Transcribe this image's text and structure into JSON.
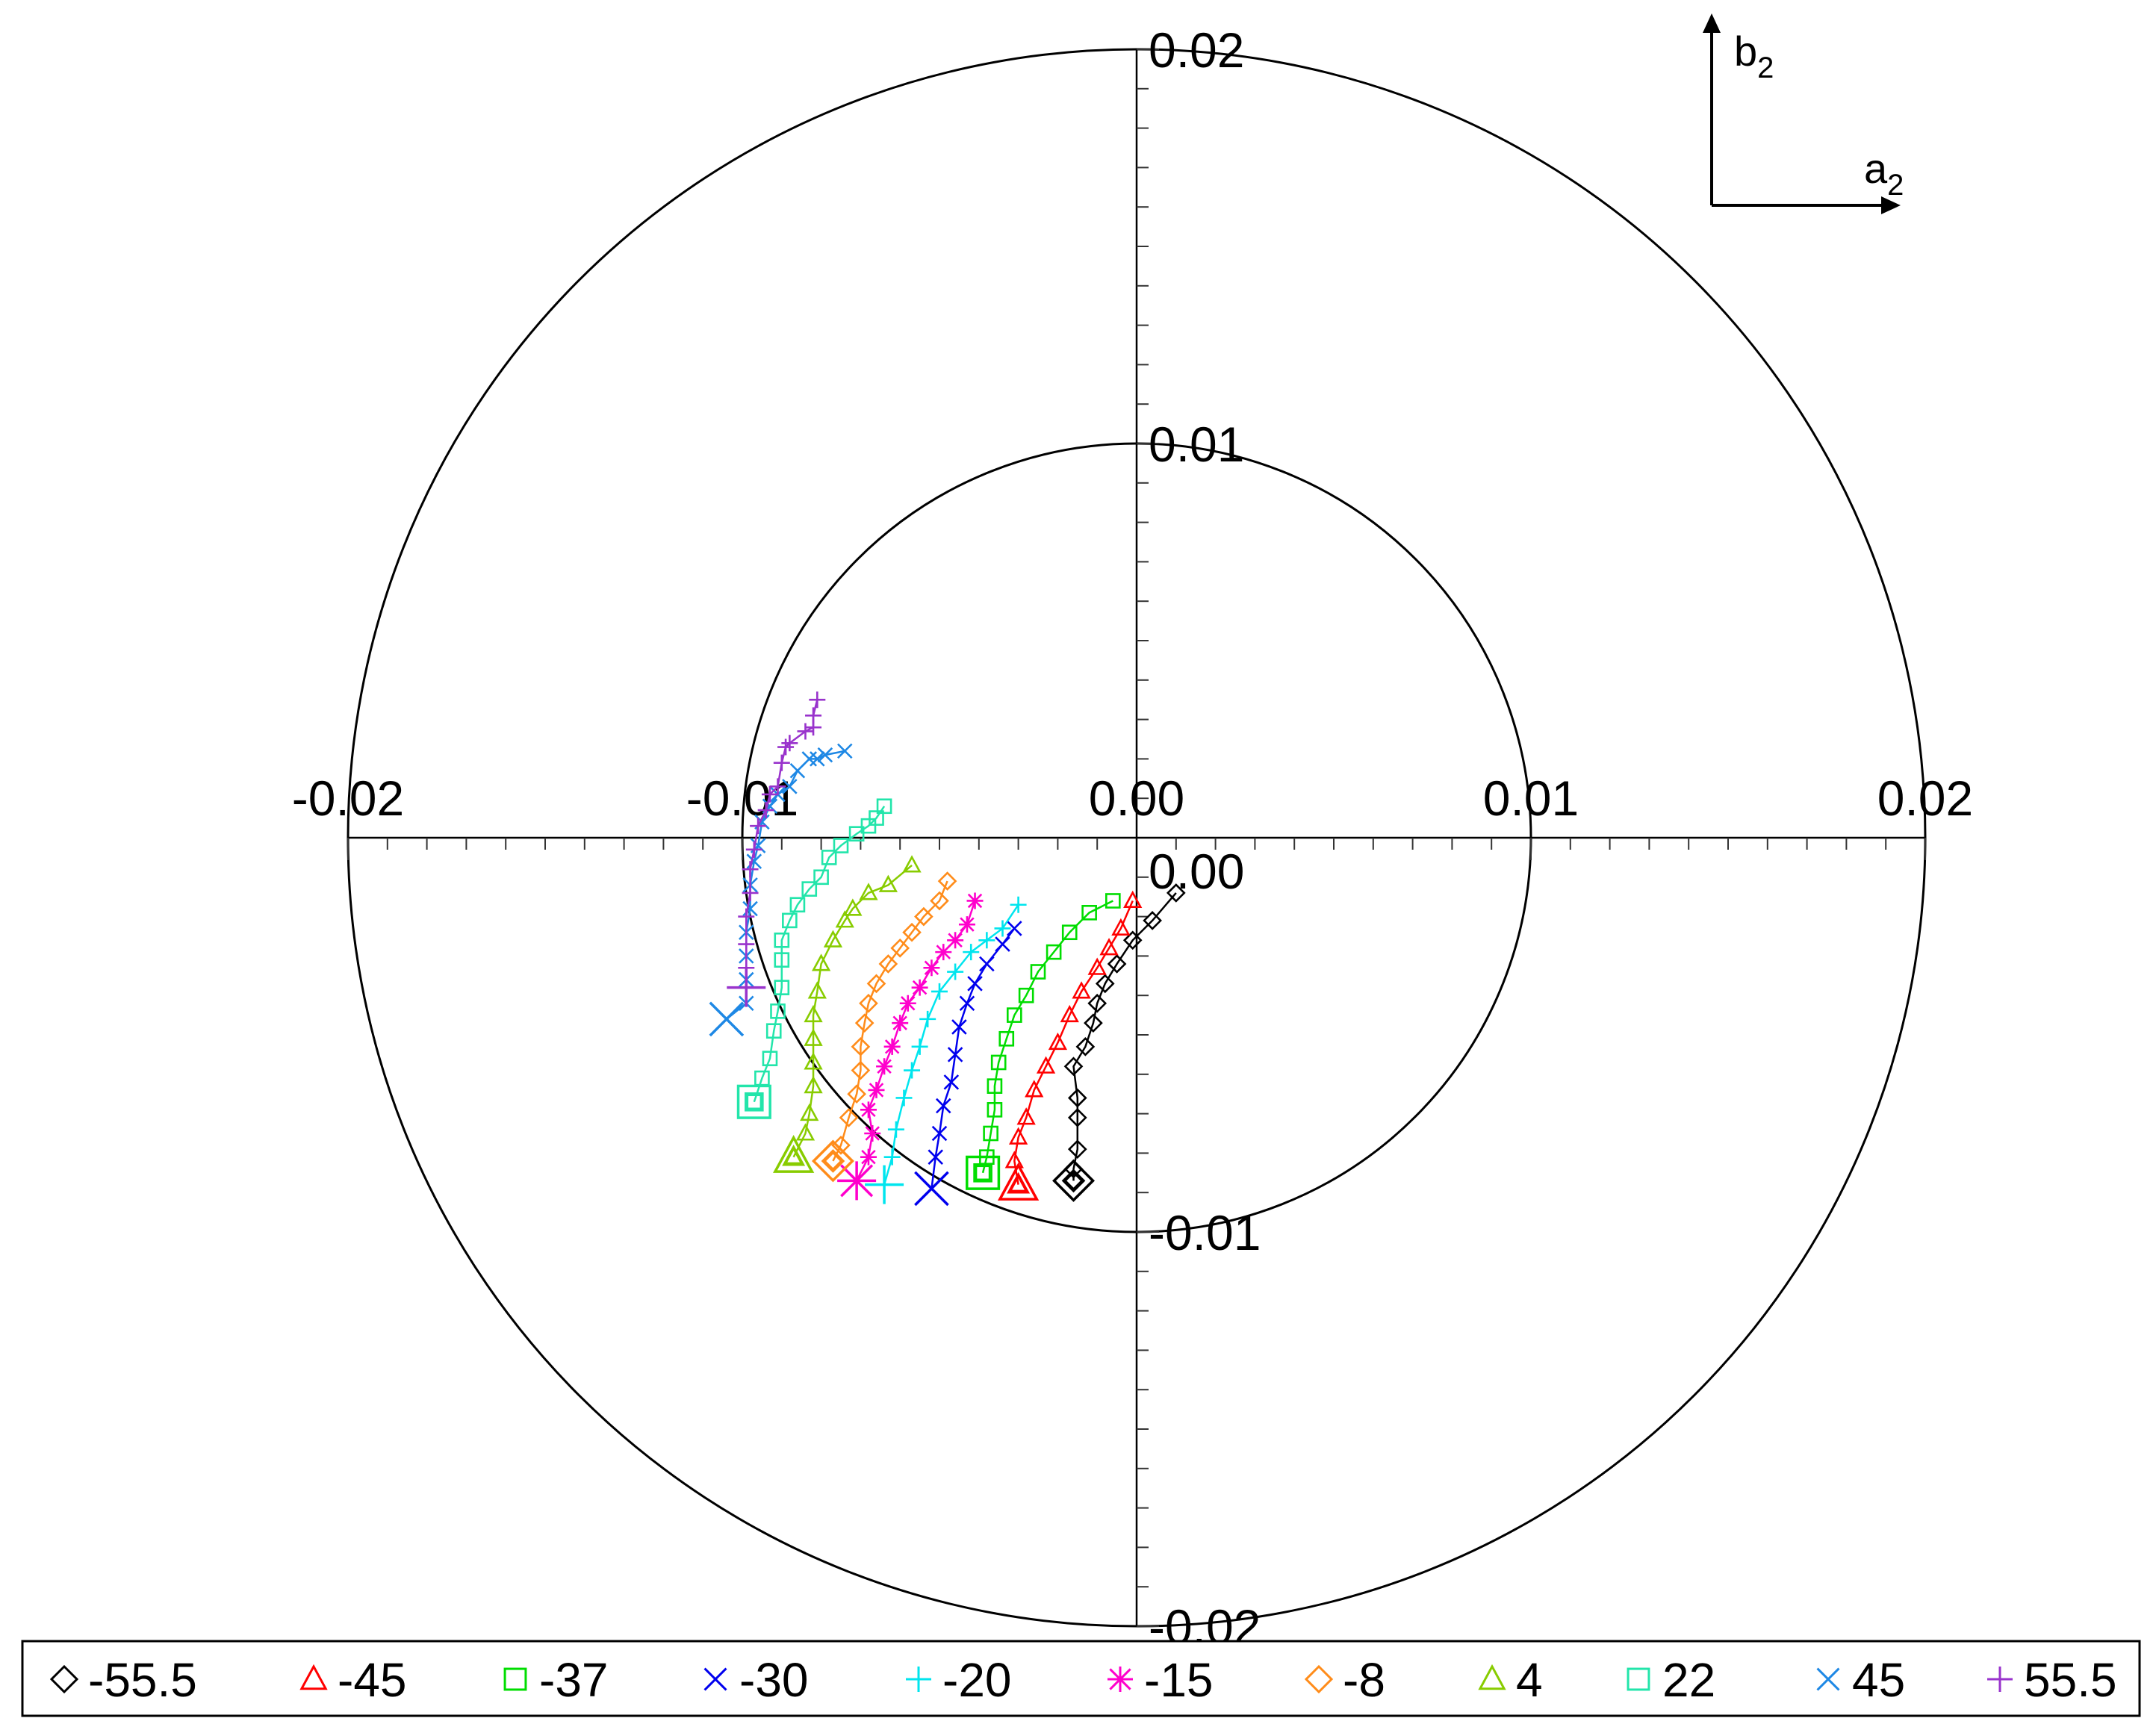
{
  "chart_data": {
    "type": "scatter",
    "title": "",
    "coordinate_system": "polar-style harmonic plane",
    "x_axis_name": "a",
    "x_axis_subscript": "2",
    "y_axis_name": "b",
    "y_axis_subscript": "2",
    "xlim": [
      -0.02,
      0.02
    ],
    "ylim": [
      -0.02,
      0.02
    ],
    "circles": [
      0.01,
      0.02
    ],
    "x_tick_labels": [
      "-0.02",
      "-0.01",
      "0.00",
      "0.01",
      "0.02"
    ],
    "x_tick_values": [
      -0.02,
      -0.01,
      0.0,
      0.01,
      0.02
    ],
    "y_tick_labels": [
      "0.02",
      "0.01",
      "0.00",
      "-0.01",
      "-0.02"
    ],
    "y_tick_values": [
      0.02,
      0.01,
      0.0,
      -0.01,
      -0.02
    ],
    "grid": false,
    "legend_position": "bottom",
    "series": [
      {
        "name": "-55.5",
        "color": "#000000",
        "marker": "diamond",
        "x": [
          -0.0016,
          -0.0016,
          -0.0015,
          -0.0015,
          -0.0015,
          -0.0016,
          -0.0013,
          -0.0011,
          -0.001,
          -0.0008,
          -0.0005,
          -0.0001,
          0.0004,
          0.001
        ],
        "y": [
          -0.0087,
          -0.0084,
          -0.0079,
          -0.0071,
          -0.0066,
          -0.0058,
          -0.0053,
          -0.0047,
          -0.0042,
          -0.0037,
          -0.0032,
          -0.0026,
          -0.0021,
          -0.0014
        ]
      },
      {
        "name": "-45",
        "color": "#ff0000",
        "marker": "triangle",
        "x": [
          -0.003,
          -0.0031,
          -0.003,
          -0.0028,
          -0.0026,
          -0.0023,
          -0.002,
          -0.0017,
          -0.0014,
          -0.001,
          -0.0007,
          -0.0004,
          -0.0001
        ],
        "y": [
          -0.0088,
          -0.0082,
          -0.0076,
          -0.0071,
          -0.0064,
          -0.0058,
          -0.0052,
          -0.0045,
          -0.0039,
          -0.0033,
          -0.0028,
          -0.0023,
          -0.0016
        ]
      },
      {
        "name": "-37",
        "color": "#00dd00",
        "marker": "square",
        "x": [
          -0.0039,
          -0.0038,
          -0.0037,
          -0.0036,
          -0.0036,
          -0.0035,
          -0.0033,
          -0.0031,
          -0.0028,
          -0.0025,
          -0.0021,
          -0.0017,
          -0.0012,
          -0.0006
        ],
        "y": [
          -0.0085,
          -0.0081,
          -0.0075,
          -0.0069,
          -0.0063,
          -0.0057,
          -0.0051,
          -0.0045,
          -0.004,
          -0.0034,
          -0.0029,
          -0.0024,
          -0.0019,
          -0.0016
        ]
      },
      {
        "name": "-30",
        "color": "#0000ee",
        "marker": "x",
        "x": [
          -0.0052,
          -0.0051,
          -0.005,
          -0.0049,
          -0.0047,
          -0.0046,
          -0.0045,
          -0.0043,
          -0.0041,
          -0.0038,
          -0.0034,
          -0.0031
        ],
        "y": [
          -0.0089,
          -0.0081,
          -0.0075,
          -0.0068,
          -0.0062,
          -0.0055,
          -0.0048,
          -0.0042,
          -0.0037,
          -0.0032,
          -0.0027,
          -0.0023
        ]
      },
      {
        "name": "-20",
        "color": "#00e5ee",
        "marker": "plus",
        "x": [
          -0.0064,
          -0.0062,
          -0.0061,
          -0.0059,
          -0.0057,
          -0.0055,
          -0.0053,
          -0.005,
          -0.0046,
          -0.0042,
          -0.0038,
          -0.0034,
          -0.003
        ],
        "y": [
          -0.0088,
          -0.0081,
          -0.0074,
          -0.0066,
          -0.0059,
          -0.0053,
          -0.0046,
          -0.0039,
          -0.0034,
          -0.0029,
          -0.0026,
          -0.0023,
          -0.0017
        ]
      },
      {
        "name": "-15",
        "color": "#ff00cc",
        "marker": "asterisk",
        "x": [
          -0.0071,
          -0.0068,
          -0.0067,
          -0.0068,
          -0.0066,
          -0.0064,
          -0.0062,
          -0.006,
          -0.0058,
          -0.0055,
          -0.0052,
          -0.0049,
          -0.0046,
          -0.0043,
          -0.0041
        ],
        "y": [
          -0.0087,
          -0.0081,
          -0.0075,
          -0.0069,
          -0.0064,
          -0.0058,
          -0.0053,
          -0.0047,
          -0.0042,
          -0.0038,
          -0.0033,
          -0.0029,
          -0.0026,
          -0.0022,
          -0.0016
        ]
      },
      {
        "name": "-8",
        "color": "#ff8c1a",
        "marker": "diamond",
        "x": [
          -0.0077,
          -0.0075,
          -0.0073,
          -0.0071,
          -0.007,
          -0.007,
          -0.0069,
          -0.0068,
          -0.0066,
          -0.0063,
          -0.006,
          -0.0057,
          -0.0054,
          -0.005,
          -0.0048
        ],
        "y": [
          -0.0082,
          -0.0078,
          -0.0071,
          -0.0065,
          -0.0059,
          -0.0053,
          -0.0047,
          -0.0042,
          -0.0037,
          -0.0032,
          -0.0028,
          -0.0024,
          -0.002,
          -0.0016,
          -0.0011
        ]
      },
      {
        "name": "4",
        "color": "#88cc00",
        "marker": "triangle",
        "x": [
          -0.0087,
          -0.0084,
          -0.0083,
          -0.0082,
          -0.0082,
          -0.0082,
          -0.0082,
          -0.0081,
          -0.008,
          -0.0077,
          -0.0074,
          -0.0072,
          -0.0068,
          -0.0063,
          -0.0057
        ],
        "y": [
          -0.0081,
          -0.0075,
          -0.007,
          -0.0063,
          -0.0057,
          -0.0051,
          -0.0045,
          -0.0039,
          -0.0032,
          -0.0026,
          -0.0021,
          -0.0018,
          -0.0014,
          -0.0012,
          -0.0007
        ]
      },
      {
        "name": "22",
        "color": "#22e5aa",
        "marker": "square",
        "x": [
          -0.0097,
          -0.0095,
          -0.0093,
          -0.0092,
          -0.0091,
          -0.009,
          -0.009,
          -0.009,
          -0.0088,
          -0.0086,
          -0.0083,
          -0.008,
          -0.0078,
          -0.0075,
          -0.0071,
          -0.0068,
          -0.0066,
          -0.0064
        ],
        "y": [
          -0.0067,
          -0.0061,
          -0.0056,
          -0.0049,
          -0.0044,
          -0.0038,
          -0.0031,
          -0.0026,
          -0.0021,
          -0.0017,
          -0.0013,
          -0.001,
          -0.0005,
          -0.0002,
          0.0001,
          0.0003,
          0.0005,
          0.0008
        ]
      },
      {
        "name": "45",
        "color": "#1e88e5",
        "marker": "x",
        "x": [
          -0.0104,
          -0.0099,
          -0.0099,
          -0.0099,
          -0.0099,
          -0.0098,
          -0.0098,
          -0.0097,
          -0.0096,
          -0.0095,
          -0.0093,
          -0.0091,
          -0.0088,
          -0.0086,
          -0.0083,
          -0.0081,
          -0.0079,
          -0.0074
        ],
        "y": [
          -0.0046,
          -0.0042,
          -0.0036,
          -0.003,
          -0.0024,
          -0.0018,
          -0.0012,
          -0.0006,
          -0.0002,
          0.0004,
          0.0008,
          0.0011,
          0.0013,
          0.0017,
          0.002,
          0.002,
          0.0021,
          0.0022
        ]
      },
      {
        "name": "55.5",
        "color": "#9933cc",
        "marker": "plus",
        "x": [
          -0.0099,
          -0.0099,
          -0.0099,
          -0.0099,
          -0.0098,
          -0.0098,
          -0.0097,
          -0.0096,
          -0.0094,
          -0.0093,
          -0.0091,
          -0.009,
          -0.0089,
          -0.0088,
          -0.0084,
          -0.0082,
          -0.0082,
          -0.0081
        ],
        "y": [
          -0.0038,
          -0.0033,
          -0.0027,
          -0.002,
          -0.0014,
          -0.0008,
          -0.0003,
          0.0003,
          0.0007,
          0.0011,
          0.0013,
          0.0019,
          0.0023,
          0.0024,
          0.0027,
          0.0028,
          0.0031,
          0.0035
        ]
      }
    ]
  }
}
